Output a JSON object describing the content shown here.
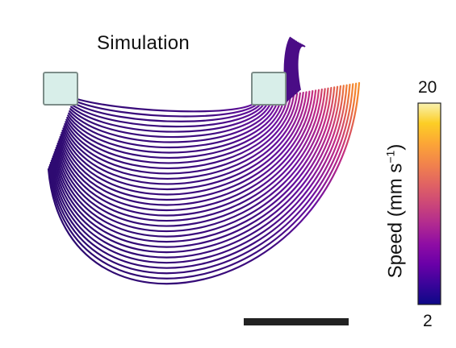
{
  "title": "Simulation",
  "colorbar": {
    "max": "20",
    "min": "2",
    "label_main": "Speed (mm s",
    "label_exp": "−1",
    "label_end": ")",
    "colormap": [
      "#0d0887",
      "#3a049a",
      "#6a00a8",
      "#8f0da4",
      "#b12a90",
      "#cc4778",
      "#e16462",
      "#f2844b",
      "#fca636",
      "#fcce25",
      "#f9f2b0"
    ]
  },
  "colors": {
    "streamline": "#3b0f70",
    "nozzle_fill": "#d8eee9",
    "nozzle_stroke": "#7c8c88",
    "scale_bar": "#222222"
  }
}
